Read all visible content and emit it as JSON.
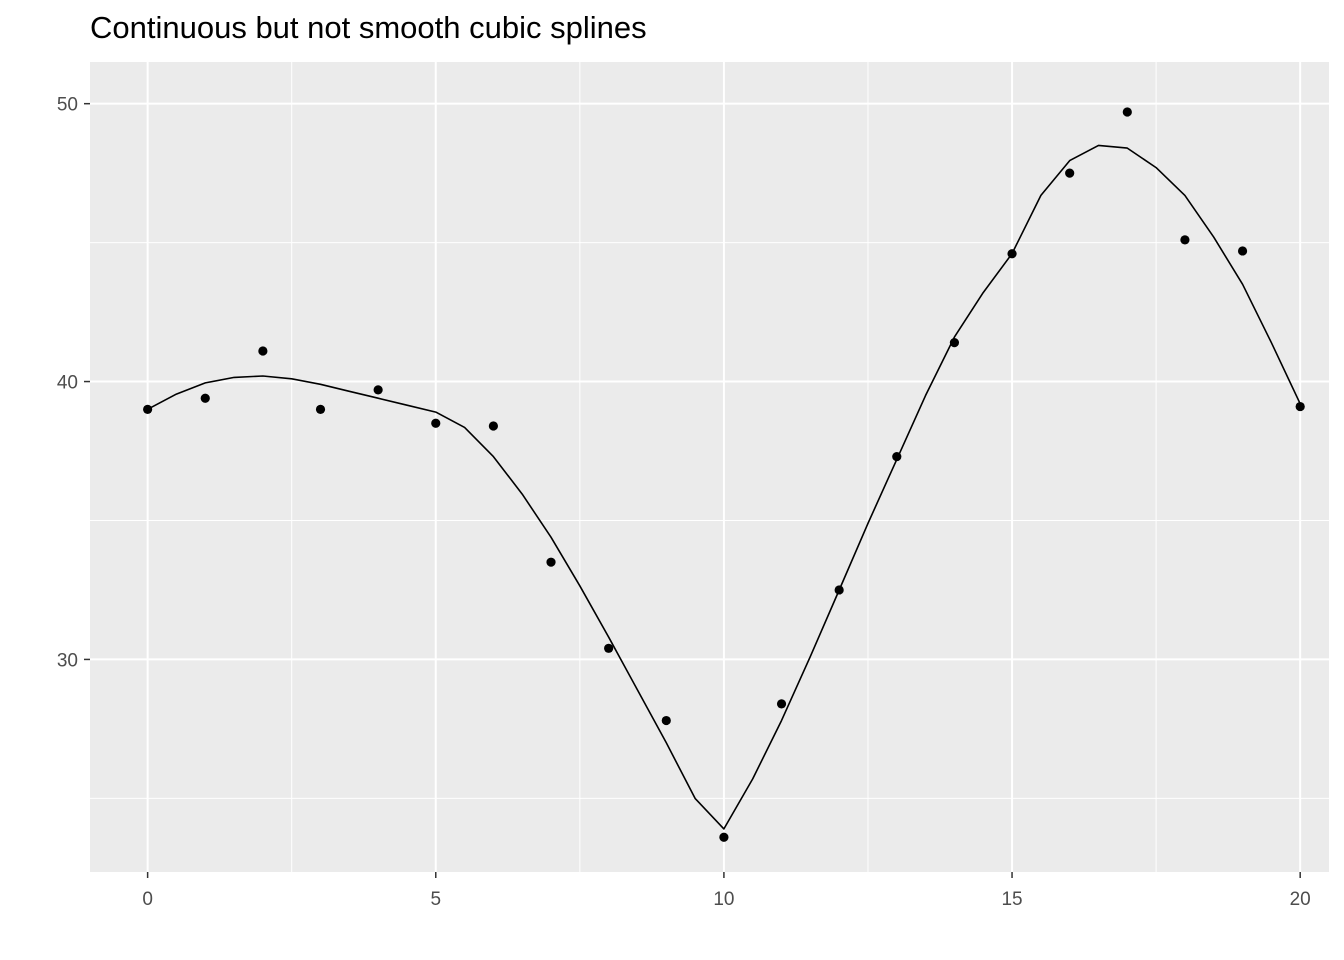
{
  "chart_data": {
    "type": "scatter",
    "title": "Continuous but not smooth cubic splines",
    "xlabel": "",
    "ylabel": "",
    "xlim": [
      -1,
      20.5
    ],
    "ylim": [
      22.35,
      51.5
    ],
    "x_ticks": [
      0,
      5,
      10,
      15,
      20
    ],
    "y_ticks": [
      30,
      40,
      50
    ],
    "x_tick_labels": [
      "0",
      "5",
      "10",
      "15",
      "20"
    ],
    "y_tick_labels": [
      "30",
      "40",
      "50"
    ],
    "grid": true,
    "background": "#ebebeb",
    "points": {
      "x": [
        0,
        1,
        2,
        3,
        4,
        5,
        6,
        7,
        8,
        9,
        10,
        11,
        12,
        13,
        14,
        15,
        16,
        17,
        18,
        19,
        20
      ],
      "y": [
        39.0,
        39.4,
        41.1,
        39.0,
        39.7,
        38.5,
        38.4,
        33.5,
        30.4,
        27.8,
        23.6,
        28.4,
        32.5,
        37.3,
        41.4,
        44.6,
        47.5,
        49.7,
        45.1,
        44.7,
        39.1
      ]
    },
    "spline": {
      "x": [
        0,
        0.5,
        1,
        1.5,
        2,
        2.5,
        3,
        3.5,
        4,
        4.5,
        5,
        5.5,
        6,
        6.5,
        7,
        7.5,
        8,
        8.5,
        9,
        9.5,
        10,
        10.5,
        11,
        11.5,
        12,
        12.5,
        13,
        13.5,
        14,
        14.5,
        15,
        15.5,
        16,
        16.5,
        17,
        17.5,
        18,
        18.5,
        19,
        19.5,
        20
      ],
      "y": [
        39.0,
        39.55,
        39.95,
        40.15,
        40.2,
        40.1,
        39.9,
        39.65,
        39.4,
        39.15,
        38.9,
        38.35,
        37.3,
        35.95,
        34.4,
        32.65,
        30.8,
        28.9,
        27.0,
        25.0,
        23.9,
        25.7,
        27.8,
        30.1,
        32.5,
        34.9,
        37.2,
        39.5,
        41.6,
        43.2,
        44.6,
        46.7,
        47.95,
        48.5,
        48.4,
        47.7,
        46.7,
        45.2,
        43.5,
        41.4,
        39.2
      ]
    }
  }
}
